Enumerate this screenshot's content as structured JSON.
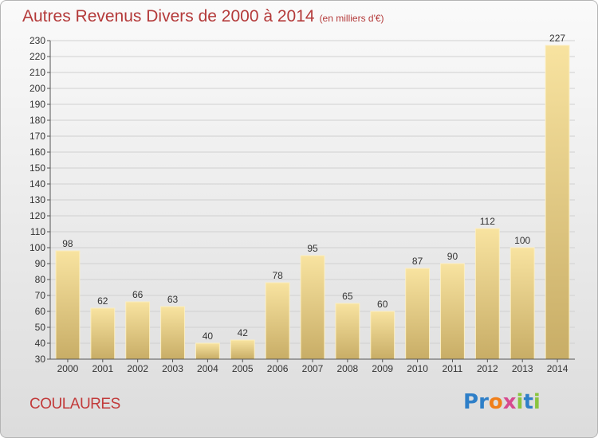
{
  "title": "Autres Revenus Divers de 2000 à 2014",
  "subtitle": "(en milliers d'€)",
  "place": "COULAURES",
  "logo": {
    "letters": [
      "P",
      "r",
      "o",
      "x",
      "i",
      "t",
      "i"
    ],
    "colors": [
      "#2e7fc8",
      "#2e7fc8",
      "#f07f1a",
      "#d64a8f",
      "#8ac43f",
      "#2e7fc8",
      "#8ac43f"
    ]
  },
  "colors": {
    "bar_light": "#f8e3a0",
    "bar_dark": "#c8ad66",
    "grid": "#d0d0d0"
  },
  "chart_data": {
    "type": "bar",
    "categories": [
      "2000",
      "2001",
      "2002",
      "2003",
      "2004",
      "2005",
      "2006",
      "2007",
      "2008",
      "2009",
      "2010",
      "2011",
      "2012",
      "2013",
      "2014"
    ],
    "values": [
      98,
      62,
      66,
      63,
      40,
      42,
      78,
      95,
      65,
      60,
      87,
      90,
      112,
      100,
      227
    ],
    "ylim": [
      30,
      230
    ],
    "yticks": [
      30,
      40,
      50,
      60,
      70,
      80,
      90,
      100,
      110,
      120,
      130,
      140,
      150,
      160,
      170,
      180,
      190,
      200,
      210,
      220,
      230
    ],
    "grid": true
  }
}
